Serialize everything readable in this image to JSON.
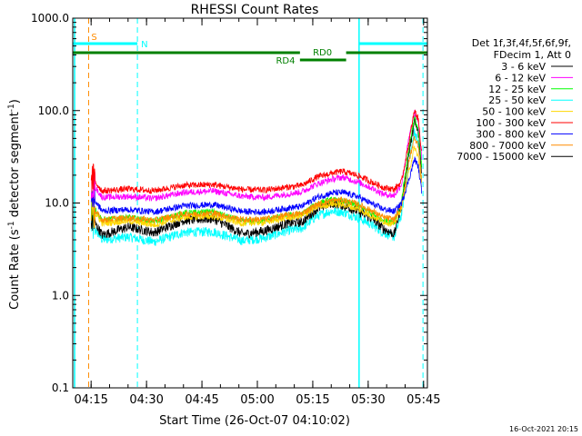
{
  "chart_data": {
    "type": "line",
    "title": "RHESSI Count Rates",
    "xlabel": "Start Time (26-Oct-07 04:10:02)",
    "ylabel_main": "Count Rate (s",
    "ylabel_sup": "-1",
    "ylabel_rest": " detector segment",
    "ylabel_sup2": "-1",
    "ylabel_end": ")",
    "y_scale": "log",
    "ylim": [
      0.1,
      1000
    ],
    "xlim_minutes": [
      0,
      96
    ],
    "y_ticks": [
      {
        "value": 0.1,
        "label": "0.1"
      },
      {
        "value": 1,
        "label": "1.0"
      },
      {
        "value": 10,
        "label": "10.0"
      },
      {
        "value": 100,
        "label": "100.0"
      },
      {
        "value": 1000,
        "label": "1000.0"
      }
    ],
    "x_ticks": [
      {
        "minute": 4.97,
        "label": "04:15"
      },
      {
        "minute": 19.97,
        "label": "04:30"
      },
      {
        "minute": 34.97,
        "label": "04:45"
      },
      {
        "minute": 49.97,
        "label": "05:00"
      },
      {
        "minute": 64.97,
        "label": "05:15"
      },
      {
        "minute": 79.97,
        "label": "05:30"
      },
      {
        "minute": 94.97,
        "label": "05:45"
      }
    ],
    "legend_header": [
      "Det 1f,3f,4f,5f,6f,9f,",
      "FDecim 1, Att 0"
    ],
    "legend_position": "right",
    "timestamp": "16-Oct-2021 20:15",
    "series": [
      {
        "name": "3 - 6 keV",
        "color": "#000000",
        "x": [
          5,
          8,
          15,
          22,
          30,
          38,
          46,
          52,
          58,
          62,
          66,
          70,
          73,
          77,
          81,
          84,
          87,
          89,
          91,
          92.5,
          93.5,
          94.5
        ],
        "y": [
          7,
          4.5,
          5.5,
          4.8,
          6.5,
          6.8,
          4.6,
          5.0,
          6.0,
          6.2,
          8.6,
          10.0,
          9.5,
          8.2,
          6.8,
          5.3,
          4.6,
          9.5,
          35,
          75,
          58,
          20
        ]
      },
      {
        "name": "6 - 12 keV",
        "color": "#ff00ff",
        "x": [
          5,
          8,
          15,
          22,
          30,
          38,
          46,
          52,
          58,
          62,
          66,
          70,
          73,
          77,
          81,
          84,
          87,
          89,
          91,
          92.5,
          93.5,
          94.5
        ],
        "y": [
          17,
          11.5,
          11.8,
          11.2,
          13.0,
          13.5,
          11.8,
          11.5,
          12.5,
          13.2,
          16.0,
          18.0,
          19.0,
          17.0,
          14.5,
          12.5,
          12.0,
          16.0,
          50,
          95,
          78,
          30
        ]
      },
      {
        "name": "12 - 25 keV",
        "color": "#00ff00",
        "x": [
          5,
          8,
          15,
          22,
          30,
          38,
          46,
          52,
          58,
          62,
          66,
          70,
          73,
          77,
          81,
          84,
          87,
          89,
          91,
          92.5,
          93.5,
          94.5
        ],
        "y": [
          10,
          6.5,
          7.0,
          6.3,
          7.8,
          8.0,
          6.3,
          6.5,
          7.3,
          7.6,
          9.8,
          10.8,
          10.5,
          9.4,
          7.8,
          6.5,
          6.0,
          10.5,
          40,
          85,
          62,
          24
        ]
      },
      {
        "name": "25 - 50 keV",
        "color": "#00ffff",
        "x": [
          5,
          8,
          15,
          22,
          30,
          38,
          46,
          52,
          58,
          62,
          66,
          70,
          73,
          77,
          81,
          84,
          87,
          89,
          91,
          92.5,
          93.5,
          94.5
        ],
        "y": [
          6,
          4.0,
          4.3,
          3.8,
          4.8,
          4.9,
          3.9,
          4.2,
          5.0,
          5.3,
          7.2,
          8.2,
          8.0,
          7.0,
          5.8,
          4.8,
          4.3,
          7.5,
          28,
          60,
          44,
          16
        ]
      },
      {
        "name": "50 - 100 keV",
        "color": "#ffd700",
        "x": [
          5,
          8,
          15,
          22,
          30,
          38,
          46,
          52,
          58,
          62,
          66,
          70,
          73,
          77,
          81,
          84,
          87,
          89,
          91,
          92.5,
          93.5,
          94.5
        ],
        "y": [
          9,
          6.0,
          6.4,
          5.8,
          7.0,
          7.2,
          6.0,
          6.2,
          6.9,
          7.2,
          9.0,
          9.8,
          9.6,
          8.7,
          7.2,
          6.3,
          5.9,
          9.0,
          22,
          40,
          32,
          14
        ]
      },
      {
        "name": "100 - 300 keV",
        "color": "#ff0000",
        "x": [
          5,
          8,
          15,
          22,
          30,
          38,
          46,
          52,
          58,
          62,
          66,
          70,
          73,
          77,
          81,
          84,
          87,
          89,
          91,
          92.5,
          93.5,
          94.5
        ],
        "y": [
          19,
          13.5,
          14.2,
          13.6,
          15.5,
          15.8,
          14.0,
          13.8,
          14.8,
          15.5,
          19.0,
          21.0,
          22.0,
          20.0,
          16.8,
          14.8,
          14.0,
          17.0,
          45,
          100,
          82,
          34
        ]
      },
      {
        "name": "300 - 800 keV",
        "color": "#0000ff",
        "x": [
          5,
          8,
          15,
          22,
          30,
          38,
          46,
          52,
          58,
          62,
          66,
          70,
          73,
          77,
          81,
          84,
          87,
          89,
          91,
          92.5,
          93.5,
          94.5
        ],
        "y": [
          12,
          8.2,
          8.5,
          8.0,
          9.3,
          9.6,
          8.1,
          8.0,
          8.8,
          9.2,
          11.5,
          12.8,
          13.0,
          11.8,
          9.8,
          8.6,
          8.1,
          10.0,
          18,
          30,
          25,
          13
        ]
      },
      {
        "name": "800 - 7000 keV",
        "color": "#ff8c00",
        "x": [
          5,
          8,
          15,
          22,
          30,
          38,
          46,
          52,
          58,
          62,
          66,
          70,
          73,
          77,
          81,
          84,
          87,
          89,
          91,
          92.5,
          93.5,
          94.5
        ],
        "y": [
          9,
          6.6,
          6.9,
          6.5,
          7.6,
          7.8,
          6.6,
          6.7,
          7.4,
          7.7,
          9.6,
          10.6,
          10.8,
          9.8,
          8.2,
          7.0,
          6.6,
          9.5,
          28,
          52,
          42,
          17
        ]
      },
      {
        "name": "7000 - 15000 keV",
        "color": "#000000",
        "x": [],
        "y": []
      }
    ],
    "annotations": [
      {
        "label": "S",
        "color": "#ff8c00"
      },
      {
        "label": "N",
        "color": "#00ffff"
      },
      {
        "label": "RD0",
        "color": "#008000"
      },
      {
        "label": "RD4",
        "color": "#008000"
      }
    ]
  }
}
